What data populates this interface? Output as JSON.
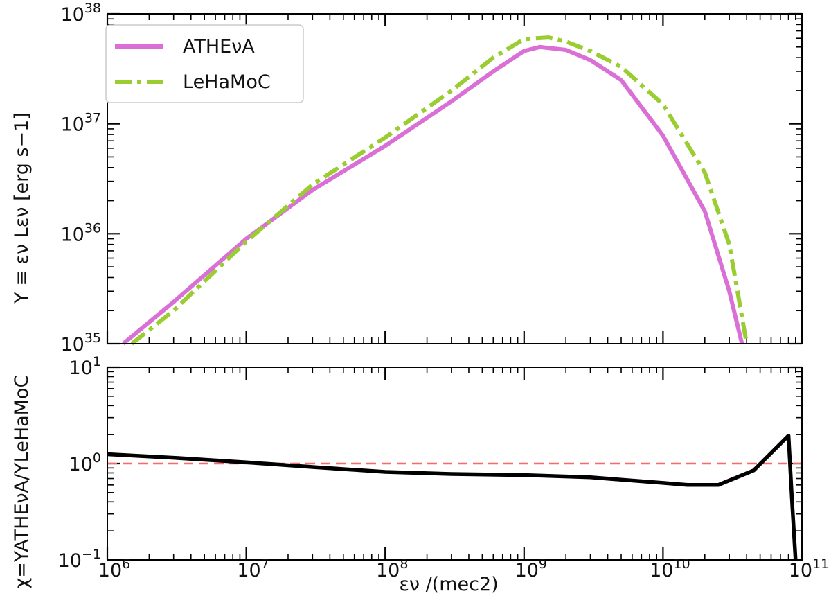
{
  "chart_data": [
    {
      "type": "line",
      "xscale": "log",
      "yscale": "log",
      "xlim": [
        1000000,
        100000000000
      ],
      "ylim": [
        1e+35,
        1e+38
      ],
      "ylabel": "Y ≡ εν Lεν [erg s−1]",
      "yticks": [
        {
          "base": "10",
          "exp": "35"
        },
        {
          "base": "10",
          "exp": "36"
        },
        {
          "base": "10",
          "exp": "37"
        },
        {
          "base": "10",
          "exp": "38"
        }
      ],
      "legend": {
        "position": "top-left"
      },
      "series": [
        {
          "name": "ATHEνA",
          "color": "#da70d6",
          "style": "solid",
          "x": [
            1300000.0,
            3000000.0,
            10000000.0,
            30000000.0,
            100000000.0,
            300000000.0,
            600000000.0,
            1000000000.0,
            1300000000.0,
            2000000000.0,
            3000000000.0,
            5000000000.0,
            10000000000.0,
            20000000000.0,
            30000000000.0,
            37000000000.0
          ],
          "y": [
            1e+35,
            2.4e+35,
            9e+35,
            2.5e+36,
            6.3e+36,
            1.6e+37,
            3e+37,
            4.6e+37,
            5e+37,
            4.7e+37,
            3.8e+37,
            2.5e+37,
            7.8e+36,
            1.6e+36,
            3e+35,
            1e+35
          ]
        },
        {
          "name": "LeHaMoC",
          "color": "#9acd32",
          "style": "dashdot",
          "x": [
            1500000.0,
            3000000.0,
            10000000.0,
            30000000.0,
            100000000.0,
            300000000.0,
            600000000.0,
            1000000000.0,
            1500000000.0,
            2000000000.0,
            3000000000.0,
            5000000000.0,
            10000000000.0,
            20000000000.0,
            30000000000.0,
            40000000000.0
          ],
          "y": [
            1e+35,
            2e+35,
            8.5e+35,
            2.8e+36,
            7.5e+36,
            2e+37,
            4e+37,
            5.9e+37,
            6.1e+37,
            5.6e+37,
            4.6e+37,
            3.3e+37,
            1.5e+37,
            3.6e+36,
            8e+35,
            1e+35
          ]
        }
      ]
    },
    {
      "type": "line",
      "xscale": "log",
      "yscale": "log",
      "xlim": [
        1000000,
        100000000000
      ],
      "ylim": [
        0.1,
        10
      ],
      "xlabel": "εν /(mec2)",
      "ylabel": "χ=YATHEνA/YLeHaMoC",
      "xticks": [
        {
          "base": "10",
          "exp": "6"
        },
        {
          "base": "10",
          "exp": "7"
        },
        {
          "base": "10",
          "exp": "8"
        },
        {
          "base": "10",
          "exp": "9"
        },
        {
          "base": "10",
          "exp": "10"
        },
        {
          "base": "10",
          "exp": "11"
        }
      ],
      "yticks": [
        {
          "base": "10",
          "exp": "−1"
        },
        {
          "base": "10",
          "exp": "0"
        },
        {
          "base": "10",
          "exp": "1"
        }
      ],
      "reference_line": {
        "y": 1,
        "color": "#ff6666",
        "style": "dashed"
      },
      "series": [
        {
          "color": "#000000",
          "style": "solid",
          "x": [
            1000000.0,
            3000000.0,
            10000000.0,
            30000000.0,
            100000000.0,
            300000000.0,
            1000000000.0,
            3000000000.0,
            10000000000.0,
            15000000000.0,
            25000000000.0,
            45000000000.0,
            80000000000.0,
            85000000000.0,
            90000000000.0
          ],
          "y": [
            1.25,
            1.15,
            1.03,
            0.92,
            0.82,
            0.78,
            0.76,
            0.72,
            0.63,
            0.6,
            0.6,
            0.85,
            1.95,
            0.4,
            0.1
          ]
        }
      ]
    }
  ]
}
